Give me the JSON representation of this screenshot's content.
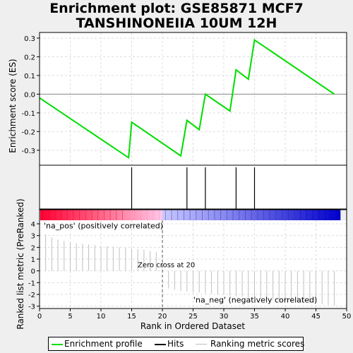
{
  "title_line1": "Enrichment plot: GSE85871 MCF7",
  "title_line2": "TANSHINONEIIA 10UM 12H",
  "colors": {
    "es_line": "#00dd00",
    "hits": "#000000",
    "zero_line": "#888888",
    "ranking_bar": "#c0c0c0",
    "pos_label": "#cc0000",
    "neg_label": "#0000bb",
    "zero_cross": "#555555"
  },
  "chart_data": [
    {
      "type": "line",
      "name": "enrichment-profile",
      "ylabel": "Enrichment score (ES)",
      "xlim": [
        0,
        50
      ],
      "ylim": [
        -0.38,
        0.33
      ],
      "yticks": [
        -0.3,
        -0.2,
        -0.1,
        0.0,
        0.1,
        0.2,
        0.3
      ],
      "yticklabels": [
        "-0.3",
        "-0.2",
        "-0.1",
        "0.0",
        "0.1",
        "0.2",
        "0.3"
      ],
      "grid": true,
      "x": [
        0,
        14.5,
        15,
        23,
        24,
        26,
        27,
        31,
        32,
        34,
        35,
        48
      ],
      "y": [
        -0.02,
        -0.34,
        -0.15,
        -0.33,
        -0.14,
        -0.19,
        0.0,
        -0.09,
        0.13,
        0.08,
        0.29,
        0.0
      ]
    },
    {
      "type": "hits",
      "name": "hits",
      "positions": [
        15,
        24,
        27,
        32,
        35
      ]
    },
    {
      "type": "bar",
      "name": "ranked-list-metric",
      "ylabel": "Ranked list metric (PreRanked)",
      "xlabel": "Rank in Ordered Dataset",
      "xlim": [
        0,
        50
      ],
      "ylim": [
        -3.2,
        4.3
      ],
      "xticks": [
        0,
        5,
        10,
        15,
        20,
        25,
        30,
        35,
        40,
        45,
        50
      ],
      "xticklabels": [
        "0",
        "5",
        "10",
        "15",
        "20",
        "25",
        "30",
        "35",
        "40",
        "45",
        "50"
      ],
      "yticks": [
        -3,
        -2,
        -1,
        0,
        1,
        2,
        3,
        4
      ],
      "yticklabels": [
        "-3",
        "-2",
        "-1",
        "0",
        "1",
        "2",
        "3",
        "4"
      ],
      "x": [
        1,
        2,
        3,
        4,
        5,
        6,
        7,
        8,
        9,
        10,
        11,
        12,
        13,
        14,
        15,
        16,
        17,
        18,
        19,
        21,
        22,
        23,
        24,
        25,
        26,
        27,
        28,
        29,
        30,
        31,
        32,
        33,
        34,
        35,
        36,
        37,
        38,
        39,
        40,
        41,
        42,
        43,
        44,
        45,
        46,
        47,
        48
      ],
      "values": [
        3.1,
        2.85,
        2.65,
        2.55,
        2.45,
        2.35,
        2.3,
        2.25,
        2.2,
        2.15,
        2.1,
        2.05,
        2.0,
        1.95,
        1.9,
        1.85,
        1.8,
        1.7,
        1.6,
        -1.5,
        -1.6,
        -1.7,
        -1.75,
        -1.8,
        -1.85,
        -1.9,
        -1.95,
        -2.0,
        -2.05,
        -2.1,
        -2.15,
        -2.2,
        -2.25,
        -2.3,
        -2.35,
        -2.4,
        -2.45,
        -2.5,
        -2.55,
        -2.6,
        -2.65,
        -2.7,
        -2.75,
        -2.8,
        -2.85,
        -2.9,
        -2.95
      ],
      "zero_cross": 20,
      "zero_cross_label": "Zero cross at 20",
      "pos_label": "'na_pos' (positively correlated)",
      "neg_label": "'na_neg' (negatively correlated)"
    }
  ],
  "legend": {
    "items": [
      {
        "label": "Enrichment profile"
      },
      {
        "label": "Hits"
      },
      {
        "label": "Ranking metric scores"
      }
    ]
  }
}
